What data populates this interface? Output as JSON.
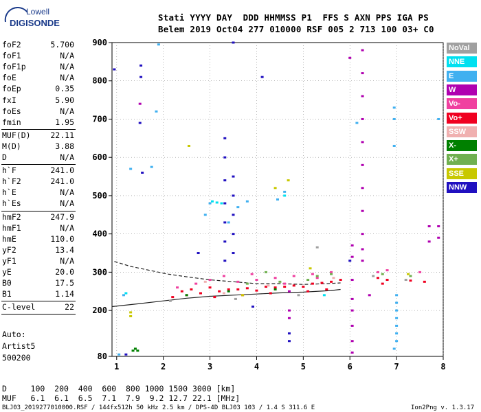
{
  "logo": {
    "top": "Lowell",
    "bottom": "DIGISONDE"
  },
  "header": {
    "line1": "Stati YYYY DAY  DDD HHMMSS P1  FFS S AXN PPS IGA PS",
    "line2": "Belem 2019 Oct04 277 010000 RSF 005 2 713 100 03+ C0"
  },
  "params": [
    {
      "name": "foF2",
      "value": "5.700"
    },
    {
      "name": "foF1",
      "value": "N/A"
    },
    {
      "name": "foF1p",
      "value": "N/A"
    },
    {
      "name": "foE",
      "value": "N/A"
    },
    {
      "name": "foEp",
      "value": "0.35"
    },
    {
      "name": "fxI",
      "value": "5.90"
    },
    {
      "name": "foEs",
      "value": "N/A"
    },
    {
      "name": "fmin",
      "value": "1.95"
    },
    {
      "name": "MUF(D)",
      "value": "22.11"
    },
    {
      "name": "M(D)",
      "value": "3.88"
    },
    {
      "name": "D",
      "value": "N/A"
    },
    {
      "name": "h`F",
      "value": "241.0"
    },
    {
      "name": "h`F2",
      "value": "241.0"
    },
    {
      "name": "h`E",
      "value": "N/A"
    },
    {
      "name": "h`Es",
      "value": "N/A"
    },
    {
      "name": "hmF2",
      "value": "247.9"
    },
    {
      "name": "hmF1",
      "value": "N/A"
    },
    {
      "name": "hmE",
      "value": "110.0"
    },
    {
      "name": "yF2",
      "value": "13.4"
    },
    {
      "name": "yF1",
      "value": "N/A"
    },
    {
      "name": "yE",
      "value": "20.0"
    },
    {
      "name": "B0",
      "value": "17.5"
    },
    {
      "name": "B1",
      "value": "1.14"
    },
    {
      "name": "C-level",
      "value": "22"
    }
  ],
  "autoscaling": {
    "line1": "Auto:",
    "line2": "Artist5",
    "line3": "500200"
  },
  "legend": [
    {
      "label": "NoVal",
      "color": "#a0a0a0"
    },
    {
      "label": "NNE",
      "color": "#00e0f0"
    },
    {
      "label": "E",
      "color": "#40b0f0"
    },
    {
      "label": "W",
      "color": "#b000b0"
    },
    {
      "label": "Vo-",
      "color": "#f040a0"
    },
    {
      "label": "Vo+",
      "color": "#f00020"
    },
    {
      "label": "SSW",
      "color": "#f0b0b0"
    },
    {
      "label": "X-",
      "color": "#008000"
    },
    {
      "label": "X+",
      "color": "#70b050"
    },
    {
      "label": "SSE",
      "color": "#c8c800"
    },
    {
      "label": "NNW",
      "color": "#2010c0"
    }
  ],
  "muf_table": {
    "d_line": "D     100  200  400  600  800 1000 1500 3000 [km]",
    "muf_line": "MUF   6.1  6.1  6.5  7.1  7.9  9.2 12.7 22.1 [MHz]"
  },
  "footer": {
    "left": "BLJ03_2019277010000.RSF / 144fx512h 50 kHz 2.5 km / DPS-4D BLJ03 103 / 1.4 S 311.6 E",
    "right": "Ion2Png v. 1.3.17"
  },
  "chart_data": {
    "type": "scatter",
    "title": "",
    "xlabel": "",
    "ylabel": "",
    "xlim": [
      0.9,
      8.0
    ],
    "ylim": [
      80,
      900
    ],
    "x_ticks": [
      1,
      2,
      3,
      4,
      5,
      6,
      7,
      8
    ],
    "y_ticks": [
      80,
      200,
      300,
      400,
      500,
      600,
      700,
      800,
      900
    ],
    "grid": "dotted",
    "legend_position": "right",
    "series": [
      {
        "name": "NNW",
        "color": "#2010c0",
        "points": [
          [
            3.32,
            650
          ],
          [
            3.32,
            600
          ],
          [
            3.32,
            540
          ],
          [
            3.32,
            480
          ],
          [
            3.32,
            430
          ],
          [
            3.32,
            380
          ],
          [
            3.32,
            330
          ],
          [
            3.5,
            550
          ],
          [
            3.5,
            500
          ],
          [
            3.5,
            450
          ],
          [
            3.5,
            400
          ],
          [
            3.5,
            350
          ],
          [
            3.5,
            900
          ],
          [
            4.12,
            810
          ],
          [
            1.52,
            840
          ],
          [
            1.52,
            810
          ],
          [
            1.55,
            560
          ],
          [
            1.5,
            690
          ],
          [
            0.95,
            830
          ],
          [
            4.7,
            140
          ],
          [
            4.7,
            120
          ],
          [
            6.0,
            330
          ],
          [
            3.92,
            210
          ],
          [
            1.2,
            85
          ],
          [
            2.75,
            350
          ]
        ]
      },
      {
        "name": "W",
        "color": "#b000b0",
        "points": [
          [
            6.27,
            880
          ],
          [
            6.27,
            820
          ],
          [
            6.27,
            760
          ],
          [
            6.27,
            700
          ],
          [
            6.27,
            640
          ],
          [
            6.27,
            580
          ],
          [
            6.27,
            520
          ],
          [
            6.27,
            460
          ],
          [
            6.27,
            400
          ],
          [
            6.27,
            360
          ],
          [
            6.27,
            330
          ],
          [
            6.05,
            370
          ],
          [
            6.05,
            340
          ],
          [
            6.05,
            280
          ],
          [
            6.05,
            230
          ],
          [
            6.05,
            200
          ],
          [
            6.05,
            160
          ],
          [
            6.05,
            120
          ],
          [
            6.05,
            90
          ],
          [
            4.7,
            250
          ],
          [
            4.7,
            200
          ],
          [
            4.7,
            180
          ],
          [
            7.7,
            420
          ],
          [
            7.7,
            380
          ],
          [
            7.9,
            420
          ],
          [
            7.9,
            390
          ],
          [
            1.5,
            740
          ],
          [
            6.42,
            240
          ],
          [
            6.0,
            860
          ]
        ]
      },
      {
        "name": "E",
        "color": "#40b0f0",
        "points": [
          [
            6.95,
            730
          ],
          [
            6.95,
            700
          ],
          [
            6.95,
            630
          ],
          [
            7.0,
            240
          ],
          [
            7.0,
            220
          ],
          [
            7.0,
            200
          ],
          [
            7.0,
            180
          ],
          [
            7.0,
            160
          ],
          [
            7.0,
            140
          ],
          [
            7.0,
            120
          ],
          [
            6.95,
            100
          ],
          [
            1.85,
            720
          ],
          [
            1.3,
            570
          ],
          [
            1.15,
            240
          ],
          [
            1.75,
            575
          ],
          [
            4.6,
            510
          ],
          [
            4.45,
            490
          ],
          [
            3.0,
            480
          ],
          [
            2.9,
            450
          ],
          [
            3.4,
            430
          ],
          [
            3.6,
            470
          ],
          [
            3.8,
            485
          ],
          [
            6.15,
            690
          ],
          [
            1.05,
            85
          ],
          [
            1.9,
            895
          ],
          [
            7.9,
            700
          ]
        ]
      },
      {
        "name": "Vo+",
        "color": "#f00020",
        "points": [
          [
            2.4,
            250
          ],
          [
            2.6,
            255
          ],
          [
            2.8,
            245
          ],
          [
            3.0,
            260
          ],
          [
            3.2,
            250
          ],
          [
            3.4,
            255
          ],
          [
            3.6,
            255
          ],
          [
            3.8,
            258
          ],
          [
            4.0,
            252
          ],
          [
            4.2,
            262
          ],
          [
            4.4,
            260
          ],
          [
            4.6,
            262
          ],
          [
            4.8,
            265
          ],
          [
            5.0,
            262
          ],
          [
            5.2,
            270
          ],
          [
            5.4,
            272
          ],
          [
            5.6,
            275
          ],
          [
            5.8,
            280
          ],
          [
            6.6,
            285
          ],
          [
            6.8,
            280
          ],
          [
            7.3,
            278
          ],
          [
            7.6,
            275
          ],
          [
            2.2,
            235
          ],
          [
            2.5,
            240
          ],
          [
            3.1,
            235
          ],
          [
            3.7,
            240
          ],
          [
            4.3,
            245
          ],
          [
            5.1,
            250
          ],
          [
            5.5,
            255
          ],
          [
            6.7,
            270
          ]
        ]
      },
      {
        "name": "Vo-",
        "color": "#f040a0",
        "points": [
          [
            2.7,
            270
          ],
          [
            3.0,
            280
          ],
          [
            3.3,
            290
          ],
          [
            3.6,
            275
          ],
          [
            4.0,
            280
          ],
          [
            4.4,
            285
          ],
          [
            4.8,
            290
          ],
          [
            5.2,
            295
          ],
          [
            5.6,
            300
          ],
          [
            6.6,
            300
          ],
          [
            6.8,
            305
          ],
          [
            7.5,
            300
          ],
          [
            2.3,
            260
          ],
          [
            3.9,
            295
          ],
          [
            4.6,
            270
          ],
          [
            5.3,
            285
          ]
        ]
      },
      {
        "name": "X-",
        "color": "#008000",
        "points": [
          [
            1.35,
            95
          ],
          [
            1.45,
            95
          ],
          [
            1.4,
            100
          ],
          [
            2.5,
            240
          ],
          [
            3.4,
            250
          ],
          [
            4.4,
            255
          ]
        ]
      },
      {
        "name": "X+",
        "color": "#70b050",
        "points": [
          [
            3.8,
            270
          ],
          [
            4.5,
            275
          ],
          [
            5.1,
            280
          ],
          [
            5.3,
            290
          ],
          [
            5.6,
            295
          ],
          [
            6.7,
            295
          ],
          [
            4.2,
            300
          ],
          [
            7.3,
            290
          ]
        ]
      },
      {
        "name": "SSE",
        "color": "#c8c800",
        "points": [
          [
            1.3,
            195
          ],
          [
            1.3,
            185
          ],
          [
            2.55,
            630
          ],
          [
            4.68,
            540
          ],
          [
            4.4,
            520
          ],
          [
            3.7,
            240
          ],
          [
            5.15,
            310
          ],
          [
            7.25,
            295
          ]
        ]
      },
      {
        "name": "NNE",
        "color": "#00e0f0",
        "points": [
          [
            3.05,
            485
          ],
          [
            3.15,
            482
          ],
          [
            3.25,
            480
          ],
          [
            4.6,
            500
          ],
          [
            5.45,
            240
          ],
          [
            1.2,
            245
          ]
        ]
      },
      {
        "name": "SSW",
        "color": "#f0b0b0",
        "points": [
          [
            3.3,
            245
          ],
          [
            4.25,
            265
          ],
          [
            5.65,
            285
          ],
          [
            2.9,
            275
          ]
        ]
      },
      {
        "name": "NoVal",
        "color": "#a0a0a0",
        "points": [
          [
            2.15,
            225
          ],
          [
            3.55,
            230
          ],
          [
            4.9,
            240
          ],
          [
            5.3,
            365
          ],
          [
            6.5,
            290
          ],
          [
            7.2,
            280
          ]
        ]
      }
    ],
    "curves": [
      {
        "name": "profile",
        "style": "solid",
        "points": [
          [
            0.9,
            210
          ],
          [
            1.5,
            218
          ],
          [
            2.0,
            225
          ],
          [
            2.5,
            232
          ],
          [
            3.0,
            237
          ],
          [
            3.5,
            240
          ],
          [
            4.0,
            243
          ],
          [
            4.5,
            246
          ],
          [
            5.0,
            248
          ],
          [
            5.6,
            252
          ],
          [
            5.8,
            255
          ]
        ]
      },
      {
        "name": "trace",
        "style": "dashed",
        "points": [
          [
            0.95,
            328
          ],
          [
            1.3,
            315
          ],
          [
            1.7,
            305
          ],
          [
            2.1,
            295
          ],
          [
            2.5,
            288
          ],
          [
            3.0,
            280
          ],
          [
            3.5,
            275
          ],
          [
            4.0,
            270
          ],
          [
            4.5,
            270
          ],
          [
            5.0,
            268
          ],
          [
            5.5,
            270
          ],
          [
            5.8,
            272
          ]
        ]
      }
    ]
  }
}
